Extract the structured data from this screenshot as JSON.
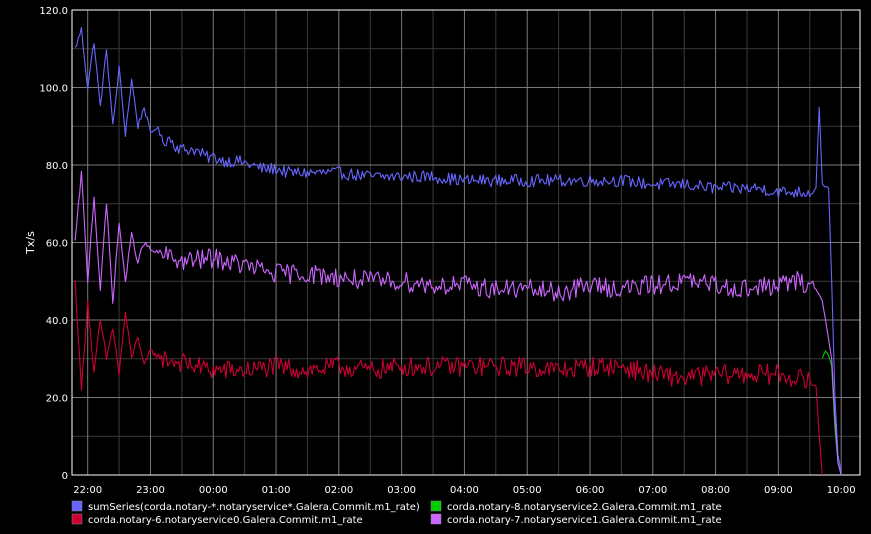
{
  "chart_data": {
    "type": "line",
    "ylabel": "Tx/s",
    "ylim": [
      0,
      120
    ],
    "y_ticks": [
      "0",
      "20.0",
      "40.0",
      "60.0",
      "80.0",
      "100.0",
      "120.0"
    ],
    "x_ticks": [
      "22:00",
      "23:00",
      "00:00",
      "01:00",
      "02:00",
      "03:00",
      "04:00",
      "05:00",
      "06:00",
      "07:00",
      "08:00",
      "09:00",
      "10:00"
    ],
    "xlim_hours": [
      -0.25,
      12.3
    ],
    "grid": true,
    "legend_position": "bottom",
    "series": [
      {
        "name": "sumSeries(corda.notary-*.notaryservice*.Galera.Commit.m1_rate)",
        "color": "#6666ff",
        "points": [
          [
            -0.2,
            110
          ],
          [
            -0.1,
            115
          ],
          [
            0.0,
            100
          ],
          [
            0.1,
            112
          ],
          [
            0.2,
            95
          ],
          [
            0.3,
            110
          ],
          [
            0.4,
            90
          ],
          [
            0.5,
            105
          ],
          [
            0.6,
            88
          ],
          [
            0.7,
            102
          ],
          [
            0.8,
            90
          ],
          [
            0.9,
            95
          ],
          [
            1.0,
            88
          ],
          [
            1.1,
            90
          ],
          [
            1.2,
            86
          ],
          [
            1.3,
            87
          ],
          [
            1.4,
            85
          ],
          [
            1.5,
            84
          ],
          [
            1.6,
            84
          ],
          [
            1.7,
            84
          ],
          [
            1.8,
            83
          ],
          [
            1.9,
            82
          ],
          [
            2.0,
            82
          ],
          [
            2.2,
            81
          ],
          [
            2.4,
            81
          ],
          [
            2.6,
            80
          ],
          [
            2.8,
            79
          ],
          [
            3.0,
            79
          ],
          [
            3.2,
            78
          ],
          [
            3.5,
            78
          ],
          [
            4.0,
            78
          ],
          [
            4.5,
            77
          ],
          [
            5.0,
            77
          ],
          [
            5.5,
            77
          ],
          [
            6.0,
            76
          ],
          [
            6.5,
            76
          ],
          [
            7.0,
            76
          ],
          [
            7.5,
            76
          ],
          [
            8.0,
            76
          ],
          [
            8.5,
            76
          ],
          [
            9.0,
            75
          ],
          [
            9.5,
            75
          ],
          [
            10.0,
            74
          ],
          [
            10.4,
            74
          ],
          [
            10.7,
            74
          ],
          [
            11.0,
            73
          ],
          [
            11.3,
            73
          ],
          [
            11.5,
            73
          ],
          [
            11.6,
            74
          ],
          [
            11.65,
            95
          ],
          [
            11.7,
            75
          ],
          [
            11.8,
            74
          ],
          [
            11.85,
            50
          ],
          [
            11.9,
            20
          ],
          [
            11.95,
            5
          ],
          [
            12.0,
            1
          ]
        ]
      },
      {
        "name": "corda.notary-6.notaryservice0.Galera.Commit.m1_rate",
        "color": "#cc0033",
        "points": [
          [
            -0.2,
            50
          ],
          [
            -0.1,
            22
          ],
          [
            0.0,
            45
          ],
          [
            0.1,
            26
          ],
          [
            0.2,
            40
          ],
          [
            0.3,
            30
          ],
          [
            0.4,
            38
          ],
          [
            0.5,
            26
          ],
          [
            0.6,
            42
          ],
          [
            0.7,
            30
          ],
          [
            0.8,
            36
          ],
          [
            0.9,
            28
          ],
          [
            1.0,
            32
          ],
          [
            1.2,
            30
          ],
          [
            1.5,
            29
          ],
          [
            2.0,
            27
          ],
          [
            2.5,
            27
          ],
          [
            3.0,
            28
          ],
          [
            3.5,
            27
          ],
          [
            4.0,
            28
          ],
          [
            4.5,
            27
          ],
          [
            5.0,
            28
          ],
          [
            5.5,
            28
          ],
          [
            6.0,
            28
          ],
          [
            6.5,
            28
          ],
          [
            7.0,
            28
          ],
          [
            7.5,
            27
          ],
          [
            8.0,
            28
          ],
          [
            8.5,
            28
          ],
          [
            9.0,
            26
          ],
          [
            9.5,
            25
          ],
          [
            10.0,
            26
          ],
          [
            10.5,
            26
          ],
          [
            11.0,
            26
          ],
          [
            11.3,
            25
          ],
          [
            11.5,
            24
          ],
          [
            11.6,
            23
          ],
          [
            11.65,
            10
          ],
          [
            11.7,
            0
          ]
        ]
      },
      {
        "name": "corda.notary-8.notaryservice2.Galera.Commit.m1_rate",
        "color": "#00cc00",
        "points": [
          [
            11.7,
            30
          ],
          [
            11.75,
            32
          ],
          [
            11.8,
            31
          ],
          [
            11.85,
            28
          ],
          [
            11.9,
            12
          ],
          [
            11.95,
            3
          ],
          [
            12.0,
            0
          ]
        ]
      },
      {
        "name": "corda.notary-7.notaryservice1.Galera.Commit.m1_rate",
        "color": "#cc66ff",
        "points": [
          [
            -0.2,
            60
          ],
          [
            -0.1,
            78
          ],
          [
            0.0,
            50
          ],
          [
            0.1,
            72
          ],
          [
            0.2,
            48
          ],
          [
            0.3,
            70
          ],
          [
            0.4,
            45
          ],
          [
            0.5,
            65
          ],
          [
            0.6,
            50
          ],
          [
            0.7,
            62
          ],
          [
            0.8,
            55
          ],
          [
            0.9,
            60
          ],
          [
            1.0,
            58
          ],
          [
            1.2,
            57
          ],
          [
            1.5,
            55
          ],
          [
            2.0,
            56
          ],
          [
            2.5,
            54
          ],
          [
            3.0,
            52
          ],
          [
            3.5,
            52
          ],
          [
            4.0,
            51
          ],
          [
            4.5,
            50
          ],
          [
            5.0,
            50
          ],
          [
            5.5,
            49
          ],
          [
            6.0,
            49
          ],
          [
            6.5,
            48
          ],
          [
            7.0,
            48
          ],
          [
            7.5,
            47
          ],
          [
            8.0,
            49
          ],
          [
            8.5,
            48
          ],
          [
            9.0,
            49
          ],
          [
            9.5,
            50
          ],
          [
            10.0,
            49
          ],
          [
            10.5,
            48
          ],
          [
            11.0,
            49
          ],
          [
            11.3,
            50
          ],
          [
            11.5,
            49
          ],
          [
            11.6,
            48
          ],
          [
            11.7,
            45
          ],
          [
            11.75,
            40
          ],
          [
            11.8,
            35
          ],
          [
            11.85,
            30
          ],
          [
            11.9,
            15
          ],
          [
            11.95,
            3
          ],
          [
            12.0,
            0
          ]
        ]
      }
    ]
  }
}
